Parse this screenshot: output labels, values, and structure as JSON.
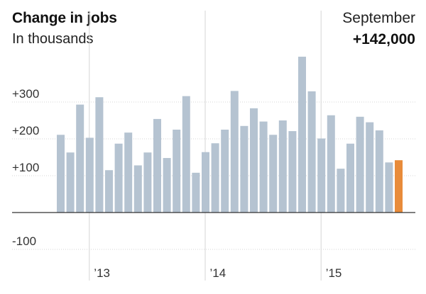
{
  "chart_data": {
    "type": "bar",
    "title": "Change in jobs",
    "subtitle": "In thousands",
    "callout": {
      "label": "September",
      "value": "+142,000"
    },
    "ylim": [
      -110,
      440
    ],
    "yticks": [
      {
        "value": 300,
        "label": "+300"
      },
      {
        "value": 200,
        "label": "+200"
      },
      {
        "value": 100,
        "label": "+100"
      },
      {
        "value": -100,
        "label": "-100"
      }
    ],
    "year_labels": [
      {
        "label": "’13",
        "bar_index": 3
      },
      {
        "label": "’14",
        "bar_index": 15
      },
      {
        "label": "’15",
        "bar_index": 27
      }
    ],
    "values": [
      211,
      163,
      293,
      203,
      313,
      115,
      187,
      217,
      128,
      163,
      254,
      148,
      225,
      316,
      108,
      164,
      188,
      225,
      330,
      235,
      283,
      247,
      211,
      250,
      221,
      423,
      329,
      201,
      264,
      119,
      187,
      260,
      245,
      223,
      136,
      142
    ],
    "highlight_index": 35,
    "colors": {
      "bar": "#b5c3d1",
      "highlight": "#e88b3a",
      "grid": "#d6d6d6",
      "zero": "#333333"
    }
  }
}
